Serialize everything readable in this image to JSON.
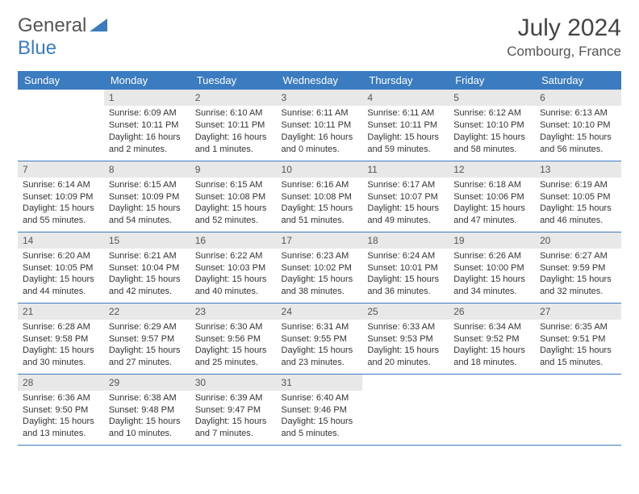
{
  "logo": {
    "text_a": "General",
    "text_b": "Blue"
  },
  "title": "July 2024",
  "location": "Combourg, France",
  "colors": {
    "header_bg": "#3b7bbf",
    "header_fg": "#ffffff",
    "daynum_bg": "#e8e8e8",
    "border": "#3b7bbf",
    "text": "#333333",
    "background": "#ffffff"
  },
  "day_headers": [
    "Sunday",
    "Monday",
    "Tuesday",
    "Wednesday",
    "Thursday",
    "Friday",
    "Saturday"
  ],
  "weeks": [
    [
      null,
      {
        "n": "1",
        "sunrise": "6:09 AM",
        "sunset": "10:11 PM",
        "dl": "16 hours and 2 minutes."
      },
      {
        "n": "2",
        "sunrise": "6:10 AM",
        "sunset": "10:11 PM",
        "dl": "16 hours and 1 minutes."
      },
      {
        "n": "3",
        "sunrise": "6:11 AM",
        "sunset": "10:11 PM",
        "dl": "16 hours and 0 minutes."
      },
      {
        "n": "4",
        "sunrise": "6:11 AM",
        "sunset": "10:11 PM",
        "dl": "15 hours and 59 minutes."
      },
      {
        "n": "5",
        "sunrise": "6:12 AM",
        "sunset": "10:10 PM",
        "dl": "15 hours and 58 minutes."
      },
      {
        "n": "6",
        "sunrise": "6:13 AM",
        "sunset": "10:10 PM",
        "dl": "15 hours and 56 minutes."
      }
    ],
    [
      {
        "n": "7",
        "sunrise": "6:14 AM",
        "sunset": "10:09 PM",
        "dl": "15 hours and 55 minutes."
      },
      {
        "n": "8",
        "sunrise": "6:15 AM",
        "sunset": "10:09 PM",
        "dl": "15 hours and 54 minutes."
      },
      {
        "n": "9",
        "sunrise": "6:15 AM",
        "sunset": "10:08 PM",
        "dl": "15 hours and 52 minutes."
      },
      {
        "n": "10",
        "sunrise": "6:16 AM",
        "sunset": "10:08 PM",
        "dl": "15 hours and 51 minutes."
      },
      {
        "n": "11",
        "sunrise": "6:17 AM",
        "sunset": "10:07 PM",
        "dl": "15 hours and 49 minutes."
      },
      {
        "n": "12",
        "sunrise": "6:18 AM",
        "sunset": "10:06 PM",
        "dl": "15 hours and 47 minutes."
      },
      {
        "n": "13",
        "sunrise": "6:19 AM",
        "sunset": "10:05 PM",
        "dl": "15 hours and 46 minutes."
      }
    ],
    [
      {
        "n": "14",
        "sunrise": "6:20 AM",
        "sunset": "10:05 PM",
        "dl": "15 hours and 44 minutes."
      },
      {
        "n": "15",
        "sunrise": "6:21 AM",
        "sunset": "10:04 PM",
        "dl": "15 hours and 42 minutes."
      },
      {
        "n": "16",
        "sunrise": "6:22 AM",
        "sunset": "10:03 PM",
        "dl": "15 hours and 40 minutes."
      },
      {
        "n": "17",
        "sunrise": "6:23 AM",
        "sunset": "10:02 PM",
        "dl": "15 hours and 38 minutes."
      },
      {
        "n": "18",
        "sunrise": "6:24 AM",
        "sunset": "10:01 PM",
        "dl": "15 hours and 36 minutes."
      },
      {
        "n": "19",
        "sunrise": "6:26 AM",
        "sunset": "10:00 PM",
        "dl": "15 hours and 34 minutes."
      },
      {
        "n": "20",
        "sunrise": "6:27 AM",
        "sunset": "9:59 PM",
        "dl": "15 hours and 32 minutes."
      }
    ],
    [
      {
        "n": "21",
        "sunrise": "6:28 AM",
        "sunset": "9:58 PM",
        "dl": "15 hours and 30 minutes."
      },
      {
        "n": "22",
        "sunrise": "6:29 AM",
        "sunset": "9:57 PM",
        "dl": "15 hours and 27 minutes."
      },
      {
        "n": "23",
        "sunrise": "6:30 AM",
        "sunset": "9:56 PM",
        "dl": "15 hours and 25 minutes."
      },
      {
        "n": "24",
        "sunrise": "6:31 AM",
        "sunset": "9:55 PM",
        "dl": "15 hours and 23 minutes."
      },
      {
        "n": "25",
        "sunrise": "6:33 AM",
        "sunset": "9:53 PM",
        "dl": "15 hours and 20 minutes."
      },
      {
        "n": "26",
        "sunrise": "6:34 AM",
        "sunset": "9:52 PM",
        "dl": "15 hours and 18 minutes."
      },
      {
        "n": "27",
        "sunrise": "6:35 AM",
        "sunset": "9:51 PM",
        "dl": "15 hours and 15 minutes."
      }
    ],
    [
      {
        "n": "28",
        "sunrise": "6:36 AM",
        "sunset": "9:50 PM",
        "dl": "15 hours and 13 minutes."
      },
      {
        "n": "29",
        "sunrise": "6:38 AM",
        "sunset": "9:48 PM",
        "dl": "15 hours and 10 minutes."
      },
      {
        "n": "30",
        "sunrise": "6:39 AM",
        "sunset": "9:47 PM",
        "dl": "15 hours and 7 minutes."
      },
      {
        "n": "31",
        "sunrise": "6:40 AM",
        "sunset": "9:46 PM",
        "dl": "15 hours and 5 minutes."
      },
      null,
      null,
      null
    ]
  ],
  "labels": {
    "sunrise": "Sunrise:",
    "sunset": "Sunset:",
    "daylight": "Daylight:"
  }
}
